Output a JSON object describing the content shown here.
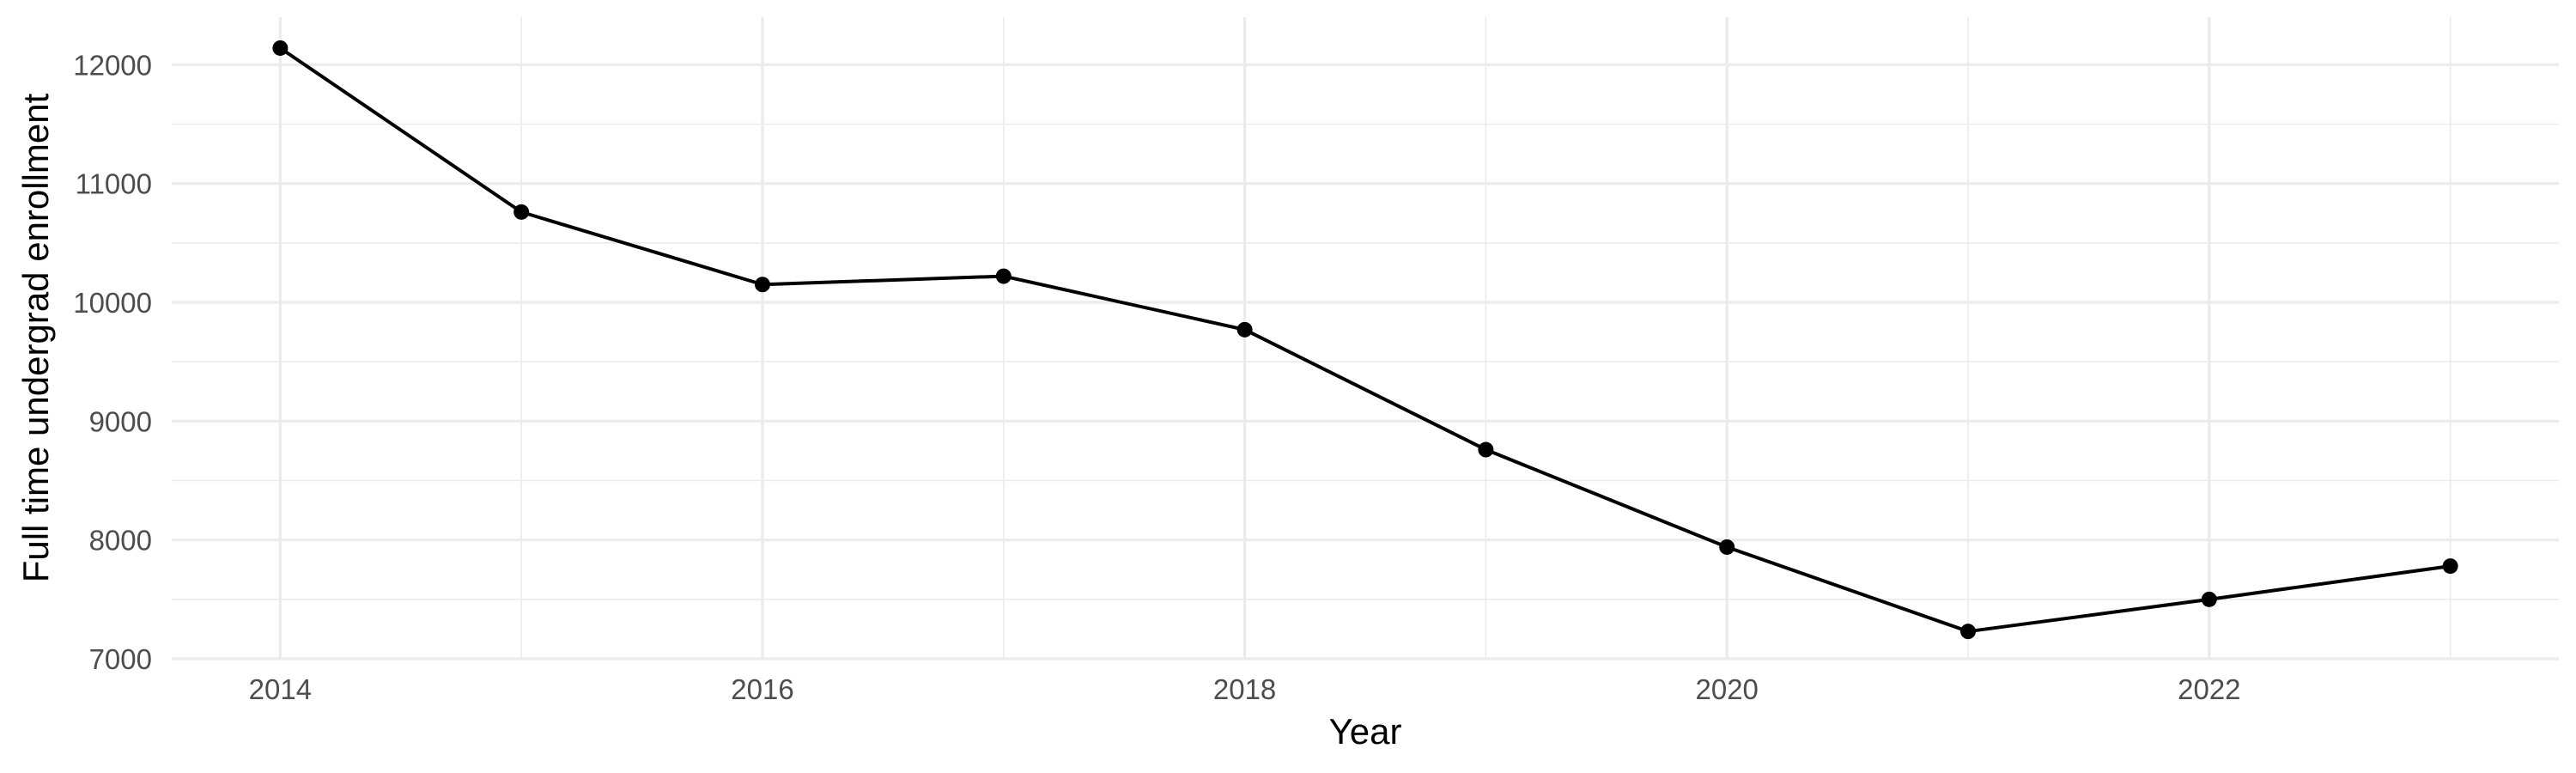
{
  "chart_data": {
    "type": "line",
    "title": "",
    "xlabel": "Year",
    "ylabel": "Full time undergrad enrollment",
    "x": [
      2014,
      2015,
      2016,
      2017,
      2018,
      2019,
      2020,
      2021,
      2022,
      2023
    ],
    "series": [
      {
        "values": [
          12140,
          10760,
          10150,
          10220,
          9770,
          8760,
          7940,
          7230,
          7500,
          7780
        ]
      }
    ],
    "xlim": [
      2013.55,
      2023.45
    ],
    "ylim": [
      7000,
      12400
    ],
    "x_ticks": [
      2014,
      2016,
      2018,
      2020,
      2022
    ],
    "x_tick_labels": [
      "2014",
      "2016",
      "2018",
      "2020",
      "2022"
    ],
    "y_ticks": [
      7000,
      8000,
      9000,
      10000,
      11000,
      12000
    ],
    "y_tick_labels": [
      "7000",
      "8000",
      "9000",
      "10000",
      "11000",
      "12000"
    ],
    "x_minor": [
      2015,
      2017,
      2019,
      2021,
      2023
    ],
    "y_minor": [
      7500,
      8500,
      9500,
      10500,
      11500
    ],
    "grid": true,
    "legend": "none",
    "colors": {
      "line": "#000000",
      "point": "#000000",
      "grid": "#ebebeb",
      "tick_text": "#4d4d4d"
    }
  }
}
